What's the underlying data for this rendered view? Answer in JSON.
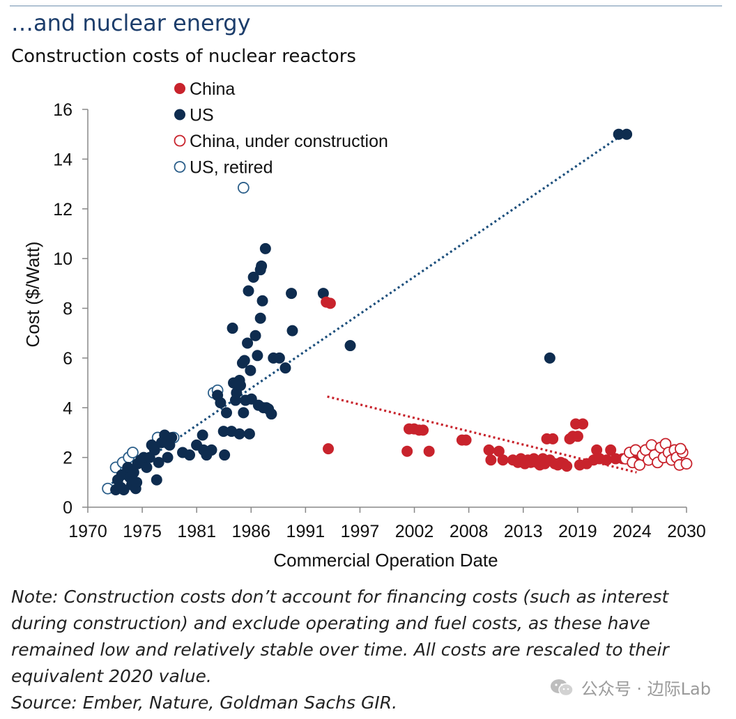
{
  "header": {
    "headline": "…and nuclear energy",
    "subtitle": "Construction costs of nuclear reactors"
  },
  "note": {
    "text": "Note: Construction costs don’t account for financing costs (such as interest during construction) and exclude operating and fuel costs, as these have remained low and relatively stable over time. All costs are rescaled to their equivalent 2020 value.",
    "source": "Source: Ember, Nature, Goldman Sachs GIR."
  },
  "watermark": {
    "text": "公众号 · 边际Lab",
    "icon": "wechat-icon"
  },
  "colors": {
    "china": "#c8232c",
    "us": "#0e2c4f",
    "axis": "#888888",
    "us_retired": "#2c5f8a"
  },
  "chart_data": {
    "type": "scatter",
    "title": "Construction costs of nuclear reactors",
    "xlabel": "Commercial Operation Date",
    "ylabel": "Cost ($/Watt)",
    "xlim": [
      1970,
      2030
    ],
    "ylim": [
      0,
      16
    ],
    "x_ticks": [
      "1970",
      "1975",
      "1981",
      "1986",
      "1991",
      "1997",
      "2002",
      "2008",
      "2013",
      "2019",
      "2024",
      "2030"
    ],
    "y_ticks": [
      "0",
      "2",
      "4",
      "6",
      "8",
      "10",
      "12",
      "14",
      "16"
    ],
    "legend": [
      "China",
      "US",
      "China, under construction",
      "US, retired"
    ],
    "series": [
      {
        "name": "US, retired",
        "style": "hollow",
        "points": [
          [
            1972.0,
            0.75
          ],
          [
            1972.8,
            1.6
          ],
          [
            1973.5,
            1.8
          ],
          [
            1974.1,
            2.0
          ],
          [
            1974.5,
            2.2
          ],
          [
            1974.0,
            1.5
          ],
          [
            1977.0,
            2.8
          ],
          [
            1978.6,
            2.8
          ],
          [
            1982.6,
            4.6
          ],
          [
            1983.0,
            4.7
          ],
          [
            1985.6,
            12.85
          ]
        ]
      },
      {
        "name": "US",
        "style": "filled",
        "points": [
          [
            1972.8,
            0.7
          ],
          [
            1973.0,
            1.1
          ],
          [
            1973.3,
            0.8
          ],
          [
            1973.6,
            0.7
          ],
          [
            1973.4,
            1.3
          ],
          [
            1974.0,
            1.6
          ],
          [
            1974.2,
            1.2
          ],
          [
            1974.4,
            0.9
          ],
          [
            1974.6,
            1.4
          ],
          [
            1974.8,
            0.75
          ],
          [
            1974.9,
            1.0
          ],
          [
            1975.0,
            1.75
          ],
          [
            1975.3,
            1.9
          ],
          [
            1975.6,
            2.0
          ],
          [
            1975.9,
            1.6
          ],
          [
            1976.2,
            2.0
          ],
          [
            1976.4,
            2.5
          ],
          [
            1976.7,
            2.3
          ],
          [
            1976.9,
            1.1
          ],
          [
            1977.1,
            1.8
          ],
          [
            1977.4,
            2.6
          ],
          [
            1977.7,
            2.9
          ],
          [
            1978.0,
            2.0
          ],
          [
            1978.2,
            2.5
          ],
          [
            1978.4,
            2.8
          ],
          [
            1979.5,
            2.2
          ],
          [
            1980.2,
            2.1
          ],
          [
            1980.9,
            2.5
          ],
          [
            1981.5,
            2.9
          ],
          [
            1981.6,
            2.3
          ],
          [
            1981.9,
            2.1
          ],
          [
            1982.4,
            2.3
          ],
          [
            1983.0,
            4.5
          ],
          [
            1983.3,
            4.2
          ],
          [
            1983.6,
            3.05
          ],
          [
            1983.7,
            2.1
          ],
          [
            1983.9,
            3.8
          ],
          [
            1984.4,
            3.05
          ],
          [
            1984.5,
            7.2
          ],
          [
            1984.6,
            5.0
          ],
          [
            1984.8,
            4.3
          ],
          [
            1984.9,
            4.6
          ],
          [
            1985.2,
            2.95
          ],
          [
            1985.2,
            5.1
          ],
          [
            1985.3,
            4.9
          ],
          [
            1985.5,
            5.8
          ],
          [
            1985.6,
            3.8
          ],
          [
            1985.7,
            5.9
          ],
          [
            1985.8,
            4.3
          ],
          [
            1986.0,
            6.6
          ],
          [
            1986.1,
            8.7
          ],
          [
            1986.2,
            2.95
          ],
          [
            1986.3,
            5.5
          ],
          [
            1986.4,
            4.35
          ],
          [
            1986.6,
            9.25
          ],
          [
            1986.8,
            6.9
          ],
          [
            1987.0,
            6.1
          ],
          [
            1987.1,
            4.1
          ],
          [
            1987.3,
            9.55
          ],
          [
            1987.4,
            9.7
          ],
          [
            1987.3,
            7.6
          ],
          [
            1987.5,
            8.3
          ],
          [
            1987.8,
            10.4
          ],
          [
            1987.6,
            4.0
          ],
          [
            1987.9,
            4.0
          ],
          [
            1988.1,
            3.95
          ],
          [
            1988.4,
            3.75
          ],
          [
            1988.6,
            6.0
          ],
          [
            1989.2,
            6.0
          ],
          [
            1989.8,
            5.6
          ],
          [
            1990.4,
            8.6
          ],
          [
            1990.5,
            7.1
          ],
          [
            1993.6,
            8.6
          ],
          [
            1996.3,
            6.5
          ],
          [
            2016.3,
            6.0
          ],
          [
            2023.2,
            15.0
          ],
          [
            2024.0,
            15.0
          ]
        ]
      },
      {
        "name": "China",
        "style": "filled",
        "points": [
          [
            1993.9,
            8.25
          ],
          [
            1994.3,
            8.2
          ],
          [
            1994.1,
            2.35
          ],
          [
            2002.0,
            2.25
          ],
          [
            2002.2,
            3.15
          ],
          [
            2002.7,
            3.15
          ],
          [
            2003.2,
            3.1
          ],
          [
            2003.6,
            3.1
          ],
          [
            2004.2,
            2.25
          ],
          [
            2007.5,
            2.7
          ],
          [
            2007.9,
            2.7
          ],
          [
            2010.2,
            2.3
          ],
          [
            2010.4,
            1.9
          ],
          [
            2011.2,
            2.25
          ],
          [
            2011.6,
            1.9
          ],
          [
            2012.6,
            1.9
          ],
          [
            2013.1,
            1.8
          ],
          [
            2013.4,
            1.95
          ],
          [
            2013.8,
            1.75
          ],
          [
            2014.1,
            1.9
          ],
          [
            2014.4,
            1.8
          ],
          [
            2014.7,
            1.95
          ],
          [
            2015.0,
            1.8
          ],
          [
            2015.3,
            1.7
          ],
          [
            2015.6,
            1.95
          ],
          [
            2015.8,
            1.75
          ],
          [
            2016.0,
            2.75
          ],
          [
            2016.3,
            1.9
          ],
          [
            2016.6,
            2.75
          ],
          [
            2016.8,
            1.75
          ],
          [
            2017.1,
            1.7
          ],
          [
            2017.4,
            1.8
          ],
          [
            2017.7,
            1.75
          ],
          [
            2018.0,
            1.65
          ],
          [
            2018.3,
            2.75
          ],
          [
            2018.6,
            2.85
          ],
          [
            2018.9,
            3.35
          ],
          [
            2019.1,
            2.85
          ],
          [
            2019.3,
            1.7
          ],
          [
            2019.6,
            3.35
          ],
          [
            2020.0,
            1.75
          ],
          [
            2020.7,
            1.9
          ],
          [
            2021.0,
            2.3
          ],
          [
            2021.3,
            1.95
          ],
          [
            2022.0,
            1.9
          ],
          [
            2022.4,
            2.3
          ],
          [
            2022.9,
            1.95
          ],
          [
            2023.6,
            1.95
          ],
          [
            2024.6,
            1.9
          ],
          [
            2025.1,
            2.05
          ]
        ]
      },
      {
        "name": "China, under construction",
        "style": "hollow",
        "points": [
          [
            2023.9,
            1.95
          ],
          [
            2024.3,
            2.2
          ],
          [
            2024.6,
            1.8
          ],
          [
            2024.9,
            2.3
          ],
          [
            2025.3,
            1.7
          ],
          [
            2025.6,
            2.1
          ],
          [
            2025.9,
            2.3
          ],
          [
            2026.2,
            1.9
          ],
          [
            2026.5,
            2.5
          ],
          [
            2026.8,
            2.1
          ],
          [
            2027.1,
            1.8
          ],
          [
            2027.4,
            2.4
          ],
          [
            2027.7,
            2.0
          ],
          [
            2027.9,
            2.55
          ],
          [
            2028.2,
            2.2
          ],
          [
            2028.5,
            1.9
          ],
          [
            2028.8,
            2.3
          ],
          [
            2029.0,
            2.0
          ],
          [
            2029.3,
            1.7
          ],
          [
            2029.6,
            2.2
          ],
          [
            2030.0,
            1.75
          ],
          [
            2029.4,
            2.35
          ]
        ]
      }
    ],
    "trendlines": [
      {
        "name": "US trend",
        "color": "#1c4f7c",
        "from": [
          1972,
          0.85
        ],
        "to": [
          2024,
          15.1
        ]
      },
      {
        "name": "China trend",
        "color": "#c8232c",
        "from": [
          1994,
          4.45
        ],
        "to": [
          2025,
          1.4
        ]
      }
    ]
  }
}
